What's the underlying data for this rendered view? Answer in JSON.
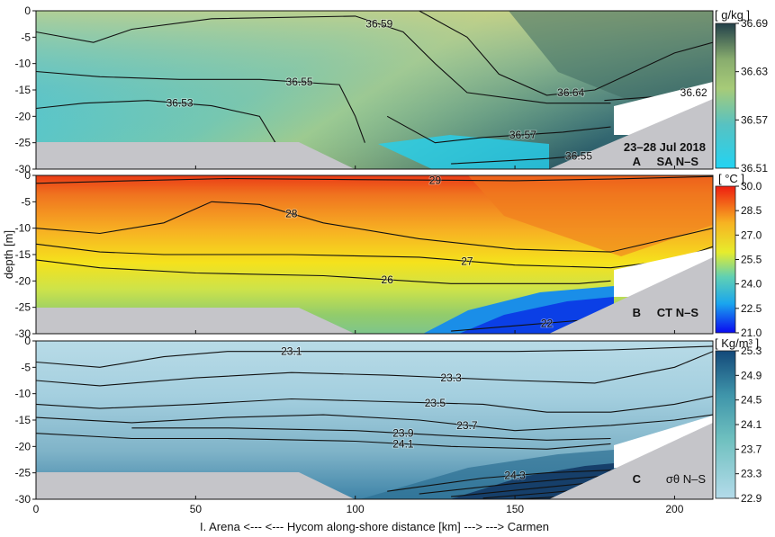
{
  "colors": {
    "land": "#c5c5c9",
    "contour": "#111111",
    "salinity_low": "#29d0ee",
    "salinity_mid": "#94c87a",
    "salinity_high": "#23424b",
    "temperature_low": "#0b24e8",
    "temperature_mid": "#f4e21a",
    "temperature_high": "#ef3a16",
    "density_low": "#add8e6",
    "density_high": "#124d7c"
  },
  "chart_data": [
    {
      "type": "heatmap",
      "panel_label": "A",
      "variable_label": "SA N–S",
      "date_label": "23–28 Jul 2018",
      "unit_label": "[ g/kg ]",
      "xlim": [
        0,
        212
      ],
      "ylim": [
        -30,
        0
      ],
      "xticks": [
        0,
        50,
        100,
        150,
        200
      ],
      "yticks": [
        0,
        -5,
        -10,
        -15,
        -20,
        -25,
        -30
      ],
      "colorbar_ticks": [
        "36.69",
        "36.63",
        "36.57",
        "36.51"
      ],
      "colorbar_range": [
        36.51,
        36.69
      ],
      "contour_labels": [
        "36.53",
        "36.55",
        "36.59",
        "36.64",
        "36.62",
        "36.57",
        "36.55"
      ],
      "contours": [
        {
          "level": "36.53",
          "points": [
            [
              0,
              -18.5
            ],
            [
              15,
              -17.5
            ],
            [
              35,
              -17
            ],
            [
              55,
              -18
            ],
            [
              70,
              -20
            ],
            [
              75,
              -25
            ]
          ]
        },
        {
          "level": "36.55",
          "points": [
            [
              0,
              -11.5
            ],
            [
              20,
              -12.5
            ],
            [
              45,
              -13
            ],
            [
              70,
              -13
            ],
            [
              95,
              -14
            ],
            [
              100,
              -20
            ],
            [
              103,
              -25
            ]
          ]
        },
        {
          "level": "36.59",
          "points": [
            [
              0,
              -4
            ],
            [
              18,
              -6
            ],
            [
              30,
              -3.5
            ],
            [
              55,
              -1.5
            ],
            [
              100,
              -1
            ],
            [
              115,
              -4
            ],
            [
              125,
              -10
            ],
            [
              135,
              -15.5
            ],
            [
              160,
              -17.5
            ],
            [
              180,
              -17.5
            ]
          ]
        },
        {
          "level": "36.64",
          "points": [
            [
              120,
              0
            ],
            [
              135,
              -5
            ],
            [
              145,
              -12
            ],
            [
              160,
              -16
            ],
            [
              175,
              -15
            ],
            [
              200,
              -8
            ],
            [
              212,
              -6
            ]
          ]
        },
        {
          "level": "36.62",
          "points": [
            [
              178,
              -17
            ],
            [
              200,
              -16
            ],
            [
              212,
              -15
            ]
          ]
        },
        {
          "level": "36.57",
          "points": [
            [
              110,
              -20
            ],
            [
              125,
              -25
            ],
            [
              140,
              -24
            ],
            [
              165,
              -23
            ],
            [
              180,
              -22
            ]
          ]
        },
        {
          "level": "36.55",
          "points": [
            [
              130,
              -29
            ],
            [
              160,
              -28
            ],
            [
              180,
              -27
            ]
          ]
        }
      ]
    },
    {
      "type": "heatmap",
      "panel_label": "B",
      "variable_label": "CT N–S",
      "unit_label": "[ °C ]",
      "ylabel": "depth [m]",
      "xlim": [
        0,
        212
      ],
      "ylim": [
        -30,
        0
      ],
      "xticks": [
        0,
        50,
        100,
        150,
        200
      ],
      "yticks": [
        0,
        -5,
        -10,
        -15,
        -20,
        -25,
        -30
      ],
      "colorbar_ticks": [
        "30.0",
        "28.5",
        "27.0",
        "25.5",
        "24.0",
        "22.5",
        "21.0"
      ],
      "colorbar_range": [
        21,
        30
      ],
      "contour_labels": [
        "29",
        "28",
        "27",
        "26",
        "22"
      ],
      "contours": [
        {
          "level": "29",
          "points": [
            [
              0,
              -1.5
            ],
            [
              30,
              -1
            ],
            [
              60,
              -0.6
            ],
            [
              100,
              -0.8
            ],
            [
              150,
              -1
            ],
            [
              180,
              -0.7
            ],
            [
              212,
              -0.2
            ]
          ]
        },
        {
          "level": "28",
          "points": [
            [
              0,
              -10
            ],
            [
              20,
              -11
            ],
            [
              40,
              -9
            ],
            [
              55,
              -5
            ],
            [
              70,
              -5.5
            ],
            [
              90,
              -9
            ],
            [
              120,
              -12
            ],
            [
              150,
              -14
            ],
            [
              180,
              -14.5
            ],
            [
              212,
              -10
            ]
          ]
        },
        {
          "level": "27",
          "points": [
            [
              0,
              -13
            ],
            [
              20,
              -14.5
            ],
            [
              40,
              -15
            ],
            [
              80,
              -15
            ],
            [
              120,
              -15.5
            ],
            [
              150,
              -17
            ],
            [
              180,
              -17.5
            ],
            [
              200,
              -16
            ],
            [
              212,
              -13.5
            ]
          ]
        },
        {
          "level": "26",
          "points": [
            [
              0,
              -16
            ],
            [
              20,
              -17.5
            ],
            [
              50,
              -18.5
            ],
            [
              90,
              -19
            ],
            [
              130,
              -20.5
            ],
            [
              170,
              -20.5
            ],
            [
              180,
              -20
            ]
          ]
        },
        {
          "level": "22",
          "points": [
            [
              130,
              -29.5
            ],
            [
              150,
              -28.5
            ],
            [
              170,
              -27.5
            ],
            [
              180,
              -27
            ]
          ]
        }
      ]
    },
    {
      "type": "heatmap",
      "panel_label": "C",
      "variable_label": "σθ N–S",
      "unit_label": "[ Kg/m³ ]",
      "xlabel": "I. Arena <--- <--- Hycom along-shore distance [km] ---> ---> Carmen",
      "xlim": [
        0,
        212
      ],
      "ylim": [
        -30,
        0
      ],
      "xticks": [
        0,
        50,
        100,
        150,
        200
      ],
      "yticks": [
        0,
        -5,
        -10,
        -15,
        -20,
        -25,
        -30
      ],
      "colorbar_ticks": [
        "25.3",
        "24.9",
        "24.5",
        "24.1",
        "23.7",
        "23.3",
        "22.9"
      ],
      "colorbar_range": [
        22.9,
        25.3
      ],
      "contour_labels": [
        "23.1",
        "23.3",
        "23.5",
        "23.7",
        "24.1",
        "23.9",
        "24.3"
      ],
      "contours": [
        {
          "level": "23.1",
          "points": [
            [
              0,
              -4
            ],
            [
              20,
              -5
            ],
            [
              40,
              -3
            ],
            [
              60,
              -2
            ],
            [
              100,
              -2
            ],
            [
              150,
              -2
            ],
            [
              180,
              -1.7
            ],
            [
              212,
              -1
            ]
          ]
        },
        {
          "level": "23.3",
          "points": [
            [
              0,
              -7.5
            ],
            [
              20,
              -8.5
            ],
            [
              50,
              -7
            ],
            [
              80,
              -6
            ],
            [
              110,
              -6.5
            ],
            [
              150,
              -7.5
            ],
            [
              175,
              -8
            ],
            [
              200,
              -5
            ],
            [
              212,
              -2
            ]
          ]
        },
        {
          "level": "23.5",
          "points": [
            [
              0,
              -12
            ],
            [
              20,
              -12.8
            ],
            [
              50,
              -12
            ],
            [
              80,
              -11
            ],
            [
              110,
              -11.5
            ],
            [
              140,
              -12
            ],
            [
              160,
              -13.5
            ],
            [
              180,
              -13.5
            ],
            [
              200,
              -12
            ],
            [
              212,
              -10.5
            ]
          ]
        },
        {
          "level": "23.7",
          "points": [
            [
              0,
              -14.5
            ],
            [
              30,
              -15.5
            ],
            [
              60,
              -14.5
            ],
            [
              90,
              -14
            ],
            [
              120,
              -15
            ],
            [
              150,
              -17
            ],
            [
              180,
              -16
            ],
            [
              200,
              -15
            ],
            [
              212,
              -14
            ]
          ]
        },
        {
          "level": "24.1",
          "points": [
            [
              0,
              -17.5
            ],
            [
              30,
              -18.5
            ],
            [
              60,
              -18.5
            ],
            [
              100,
              -19
            ],
            [
              130,
              -20
            ],
            [
              160,
              -20.5
            ],
            [
              180,
              -19.5
            ]
          ]
        },
        {
          "level": "23.9",
          "points": [
            [
              30,
              -16.5
            ],
            [
              60,
              -16.5
            ],
            [
              100,
              -17
            ],
            [
              130,
              -18
            ],
            [
              160,
              -18.8
            ],
            [
              180,
              -18.5
            ]
          ]
        },
        {
          "level": "24.3",
          "points": [
            [
              110,
              -28.5
            ],
            [
              140,
              -26
            ],
            [
              160,
              -25
            ],
            [
              180,
              -24.5
            ]
          ]
        },
        {
          "level": "24.5",
          "points": [
            [
              120,
              -29
            ],
            [
              150,
              -27
            ],
            [
              170,
              -26
            ],
            [
              180,
              -25.5
            ]
          ]
        },
        {
          "level": "24.7",
          "points": [
            [
              130,
              -29.5
            ],
            [
              155,
              -28
            ],
            [
              172,
              -27
            ],
            [
              180,
              -26.5
            ]
          ]
        },
        {
          "level": "24.9",
          "points": [
            [
              140,
              -29.8
            ],
            [
              160,
              -28.8
            ],
            [
              175,
              -28
            ],
            [
              180,
              -27.5
            ]
          ]
        },
        {
          "level": "25.1",
          "points": [
            [
              150,
              -30
            ],
            [
              165,
              -29.5
            ],
            [
              178,
              -28.8
            ],
            [
              180,
              -28.5
            ]
          ]
        }
      ]
    }
  ]
}
